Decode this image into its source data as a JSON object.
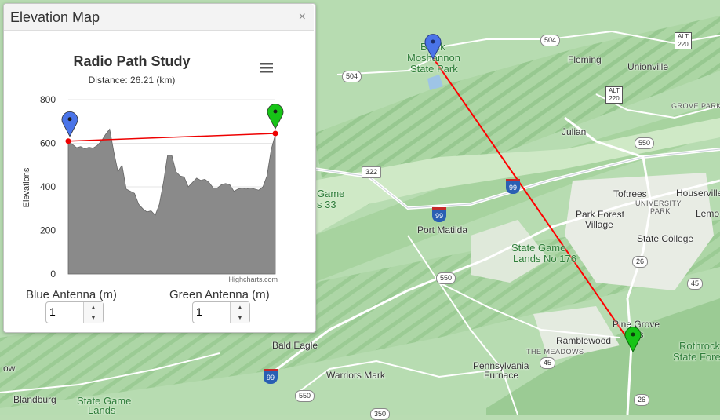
{
  "panel": {
    "title": "Elevation Map",
    "close": "×"
  },
  "chart_data": {
    "type": "area",
    "title": "Radio Path Study",
    "subtitle": "Distance: 26.21 (km)",
    "ylabel": "Elevations",
    "ylim": [
      0,
      800
    ],
    "yticks": [
      "800",
      "600",
      "400",
      "200",
      "0"
    ],
    "credits": "Highcharts.com",
    "x": [
      0,
      1,
      2,
      3,
      4,
      5,
      6,
      7,
      8,
      9,
      10,
      11,
      12,
      13,
      14,
      15,
      16,
      17,
      18,
      19,
      20,
      21,
      22,
      23,
      24,
      25,
      26,
      27,
      28,
      29,
      30,
      31,
      32,
      33,
      34,
      35,
      36,
      37,
      38,
      39,
      40,
      41,
      42,
      43,
      44,
      45,
      46,
      47,
      48,
      49,
      50
    ],
    "series": [
      {
        "values": [
          610,
          595,
          580,
          585,
          575,
          582,
          578,
          590,
          610,
          640,
          665,
          560,
          470,
          500,
          390,
          380,
          370,
          320,
          300,
          285,
          290,
          270,
          320,
          420,
          545,
          545,
          470,
          450,
          445,
          400,
          420,
          440,
          430,
          435,
          420,
          395,
          395,
          410,
          415,
          410,
          380,
          390,
          395,
          390,
          395,
          390,
          385,
          400,
          450,
          570,
          640
        ]
      }
    ],
    "line": {
      "start": 610,
      "end": 645
    },
    "colors": {
      "area": "#8a8a8a",
      "line": "#ee0000",
      "blue_marker": "#4a74e8",
      "green_marker": "#17c417"
    }
  },
  "controls": {
    "blue_label": "Blue Antenna (m)",
    "blue_value": "1",
    "green_label": "Green Antenna (m)",
    "green_value": "1",
    "up_arrow": "▲",
    "down_arrow": "▼"
  },
  "map": {
    "places": [
      {
        "name": "Black",
        "cls": "green"
      },
      {
        "name": "Moshannon",
        "cls": "green"
      },
      {
        "name": "State Park",
        "cls": "green"
      },
      {
        "name": "Fleming",
        "cls": ""
      },
      {
        "name": "Unionville",
        "cls": ""
      },
      {
        "name": "GROVE PARK",
        "cls": "small"
      },
      {
        "name": "Julian",
        "cls": ""
      },
      {
        "name": "Toftrees",
        "cls": ""
      },
      {
        "name": "Houserville",
        "cls": ""
      },
      {
        "name": "UNIVERSITY",
        "cls": "small"
      },
      {
        "name": "PARK",
        "cls": "small"
      },
      {
        "name": "Lemo",
        "cls": ""
      },
      {
        "name": "Park Forest",
        "cls": ""
      },
      {
        "name": "Village",
        "cls": ""
      },
      {
        "name": "State College",
        "cls": ""
      },
      {
        "name": "Port Matilda",
        "cls": ""
      },
      {
        "name": "State Game",
        "cls": "green"
      },
      {
        "name": "Lands No 176",
        "cls": "green"
      },
      {
        "name": "Game",
        "cls": "green"
      },
      {
        "name": "s 33",
        "cls": "green"
      },
      {
        "name": "Pine Grove",
        "cls": ""
      },
      {
        "name": "lls",
        "cls": ""
      },
      {
        "name": "Ramblewood",
        "cls": ""
      },
      {
        "name": "THE MEADOWS",
        "cls": "small"
      },
      {
        "name": "Rothrock",
        "cls": "green"
      },
      {
        "name": "State Fore",
        "cls": "green"
      },
      {
        "name": "Bald Eagle",
        "cls": ""
      },
      {
        "name": "Warriors Mark",
        "cls": ""
      },
      {
        "name": "Pennsylvania",
        "cls": ""
      },
      {
        "name": "Furnace",
        "cls": ""
      },
      {
        "name": "Blandburg",
        "cls": ""
      },
      {
        "name": "State Game",
        "cls": "green"
      },
      {
        "name": "Lands",
        "cls": "green"
      },
      {
        "name": "ow",
        "cls": ""
      }
    ],
    "shields": [
      "504",
      "504",
      "550",
      "550",
      "26",
      "45",
      "45",
      "550",
      "350",
      "26"
    ],
    "interstates": [
      "99",
      "99",
      "99"
    ],
    "us_shields": [
      "322"
    ],
    "alt_shields": [
      {
        "top": "ALT",
        "num": "220"
      },
      {
        "top": "ALT",
        "num": "220"
      }
    ]
  }
}
